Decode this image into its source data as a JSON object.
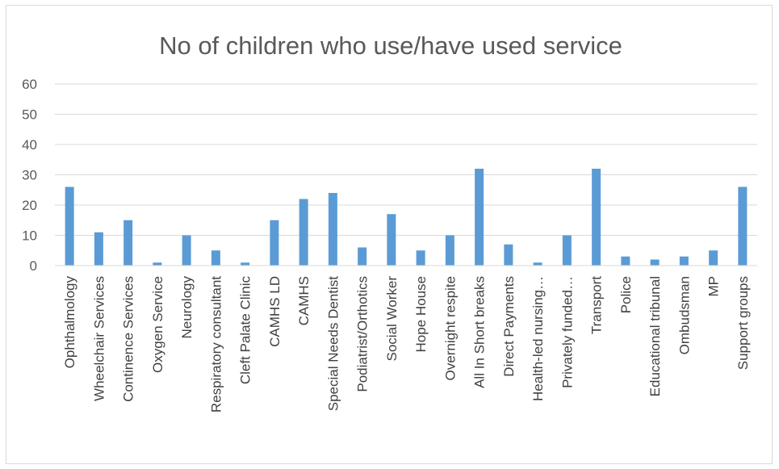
{
  "chart_data": {
    "type": "bar",
    "title": "No of children who use/have used service",
    "xlabel": "",
    "ylabel": "",
    "ylim": [
      0,
      60
    ],
    "yticks": [
      0,
      10,
      20,
      30,
      40,
      50,
      60
    ],
    "grid": true,
    "legend": "none",
    "bar_color": "#5b9bd5",
    "categories": [
      "Ophthalmology",
      "Wheelchair Services",
      "Continence Services",
      "Oxygen Service",
      "Neurology",
      "Respiratory consultant",
      "Cleft Palate Clinic",
      "CAMHS LD",
      "CAMHS",
      "Special Needs Dentist",
      "Podiatrist/Orthotics",
      "Social Worker",
      "Hope House",
      "Overnight respite",
      "All In Short breaks",
      "Direct Payments",
      "Health-led nursing…",
      "Privately funded…",
      "Transport",
      "Police",
      "Educational tribunal",
      "Ombudsman",
      "MP",
      "Support groups"
    ],
    "values": [
      26,
      11,
      15,
      1,
      10,
      5,
      1,
      15,
      22,
      24,
      6,
      17,
      5,
      10,
      32,
      7,
      1,
      10,
      32,
      3,
      2,
      3,
      5,
      26
    ]
  }
}
